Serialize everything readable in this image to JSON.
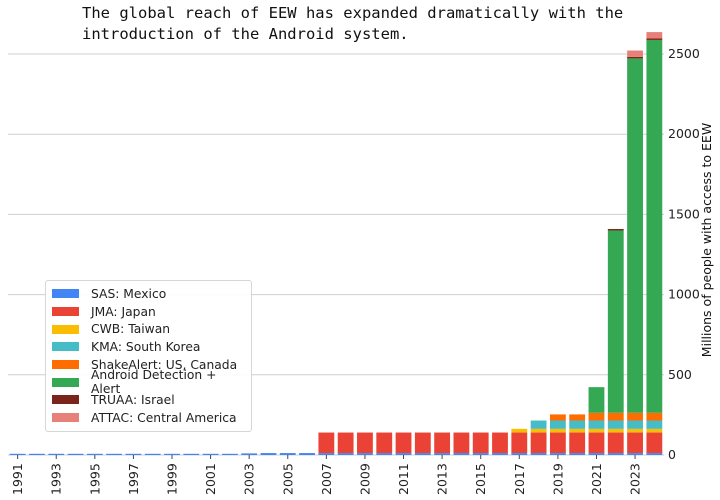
{
  "title": "The global reach of EEW has expanded dramatically with the introduction of the Android system.",
  "chart_data": {
    "type": "bar",
    "stacked": true,
    "categories": [
      "1991",
      "1992",
      "1993",
      "1994",
      "1995",
      "1996",
      "1997",
      "1998",
      "1999",
      "2000",
      "2001",
      "2002",
      "2003",
      "2004",
      "2005",
      "2006",
      "2007",
      "2008",
      "2009",
      "2010",
      "2011",
      "2012",
      "2013",
      "2014",
      "2015",
      "2016",
      "2017",
      "2018",
      "2019",
      "2020",
      "2021",
      "2022",
      "2023",
      "2024"
    ],
    "tick_labels": [
      "1991",
      "1993",
      "1995",
      "1997",
      "1999",
      "2001",
      "2003",
      "2005",
      "2007",
      "2009",
      "2011",
      "2013",
      "2015",
      "2017",
      "2019",
      "2021",
      "2023"
    ],
    "ylabel": "Millions of people with access to EEW",
    "ylim": [
      0,
      2650
    ],
    "yticks": [
      0,
      500,
      1000,
      1500,
      2000,
      2500
    ],
    "yaxis_position": "right",
    "grid": "horizontal",
    "legend_position": "lower-left",
    "series": [
      {
        "name": "SAS: Mexico",
        "color": "#4285f4",
        "values": [
          5,
          5,
          5,
          5,
          5,
          5,
          5,
          5,
          5,
          5,
          5,
          5,
          10,
          12,
          12,
          12,
          12,
          12,
          12,
          12,
          12,
          12,
          12,
          12,
          12,
          12,
          12,
          12,
          12,
          12,
          12,
          12,
          12,
          12
        ]
      },
      {
        "name": "JMA: Japan",
        "color": "#ea4335",
        "values": [
          0,
          0,
          0,
          0,
          0,
          0,
          0,
          0,
          0,
          0,
          0,
          0,
          0,
          0,
          0,
          0,
          128,
          128,
          128,
          128,
          128,
          128,
          128,
          128,
          128,
          128,
          128,
          128,
          128,
          128,
          128,
          128,
          128,
          128
        ]
      },
      {
        "name": "CWB: Taiwan",
        "color": "#fbbc04",
        "values": [
          0,
          0,
          0,
          0,
          0,
          0,
          0,
          0,
          0,
          0,
          0,
          0,
          0,
          0,
          0,
          0,
          0,
          0,
          0,
          0,
          0,
          0,
          0,
          0,
          0,
          0,
          23,
          23,
          23,
          23,
          23,
          23,
          23,
          23
        ]
      },
      {
        "name": "KMA: South Korea",
        "color": "#46bdc6",
        "values": [
          0,
          0,
          0,
          0,
          0,
          0,
          0,
          0,
          0,
          0,
          0,
          0,
          0,
          0,
          0,
          0,
          0,
          0,
          0,
          0,
          0,
          0,
          0,
          0,
          0,
          0,
          0,
          52,
          52,
          52,
          52,
          52,
          52,
          52
        ]
      },
      {
        "name": "ShakeAlert: US, Canada",
        "color": "#ff6d01",
        "values": [
          0,
          0,
          0,
          0,
          0,
          0,
          0,
          0,
          0,
          0,
          0,
          0,
          0,
          0,
          0,
          0,
          0,
          0,
          0,
          0,
          0,
          0,
          0,
          0,
          0,
          0,
          0,
          0,
          38,
          38,
          48,
          48,
          48,
          48
        ]
      },
      {
        "name": "Android Detection + Alert",
        "color": "#34a853",
        "values": [
          0,
          0,
          0,
          0,
          0,
          0,
          0,
          0,
          0,
          0,
          0,
          0,
          0,
          0,
          0,
          0,
          0,
          0,
          0,
          0,
          0,
          0,
          0,
          0,
          0,
          0,
          0,
          0,
          0,
          0,
          160,
          1137,
          2210,
          2325
        ]
      },
      {
        "name": "TRUAA: Israel",
        "color": "#7b241c",
        "values": [
          0,
          0,
          0,
          0,
          0,
          0,
          0,
          0,
          0,
          0,
          0,
          0,
          0,
          0,
          0,
          0,
          0,
          0,
          0,
          0,
          0,
          0,
          0,
          0,
          0,
          0,
          0,
          0,
          0,
          0,
          0,
          9,
          9,
          9
        ]
      },
      {
        "name": "ATTAC: Central America",
        "color": "#e8807a",
        "values": [
          0,
          0,
          0,
          0,
          0,
          0,
          0,
          0,
          0,
          0,
          0,
          0,
          0,
          0,
          0,
          0,
          0,
          0,
          0,
          0,
          0,
          0,
          0,
          0,
          0,
          0,
          0,
          0,
          0,
          0,
          0,
          0,
          40,
          40
        ]
      }
    ]
  }
}
